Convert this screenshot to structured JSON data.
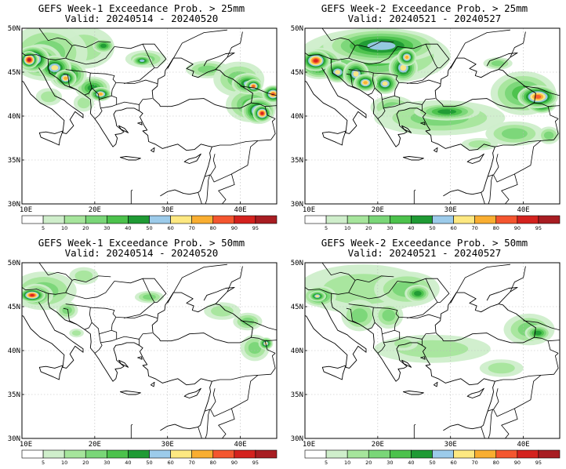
{
  "colors": {
    "c5": "#ffffff",
    "c10": "#cfeecb",
    "c20": "#a6e59c",
    "c30": "#7ad678",
    "c40": "#4cc24c",
    "c50": "#1f9a34",
    "c60": "#9ccbea",
    "c70": "#fde881",
    "c80": "#f9ae31",
    "c90": "#f4562f",
    "c95": "#d4221e",
    "cmax": "#a81d22",
    "land": "#ffffff",
    "border": "#000000",
    "grid": "#b9b9b9"
  },
  "colorbar_labels": [
    "5",
    "10",
    "20",
    "30",
    "40",
    "50",
    "60",
    "70",
    "80",
    "90",
    "95"
  ],
  "axes": {
    "lat_labels": [
      "50N",
      "45N",
      "40N",
      "35N",
      "30N"
    ],
    "lon_labels": [
      "10E",
      "20E",
      "30E",
      "40E"
    ]
  },
  "panels": [
    {
      "line1": "GEFS Week-1 Exceedance Prob. > 25mm",
      "line2": "Valid: 20240514 - 20240520"
    },
    {
      "line1": "GEFS Week-2 Exceedance Prob. > 25mm",
      "line2": "Valid: 20240521 - 20240527"
    },
    {
      "line1": "GEFS Week-1 Exceedance Prob. > 50mm",
      "line2": "Valid: 20240514 - 20240520"
    },
    {
      "line1": "GEFS Week-2 Exceedance Prob. > 50mm",
      "line2": "Valid: 20240521 - 20240527"
    }
  ]
}
